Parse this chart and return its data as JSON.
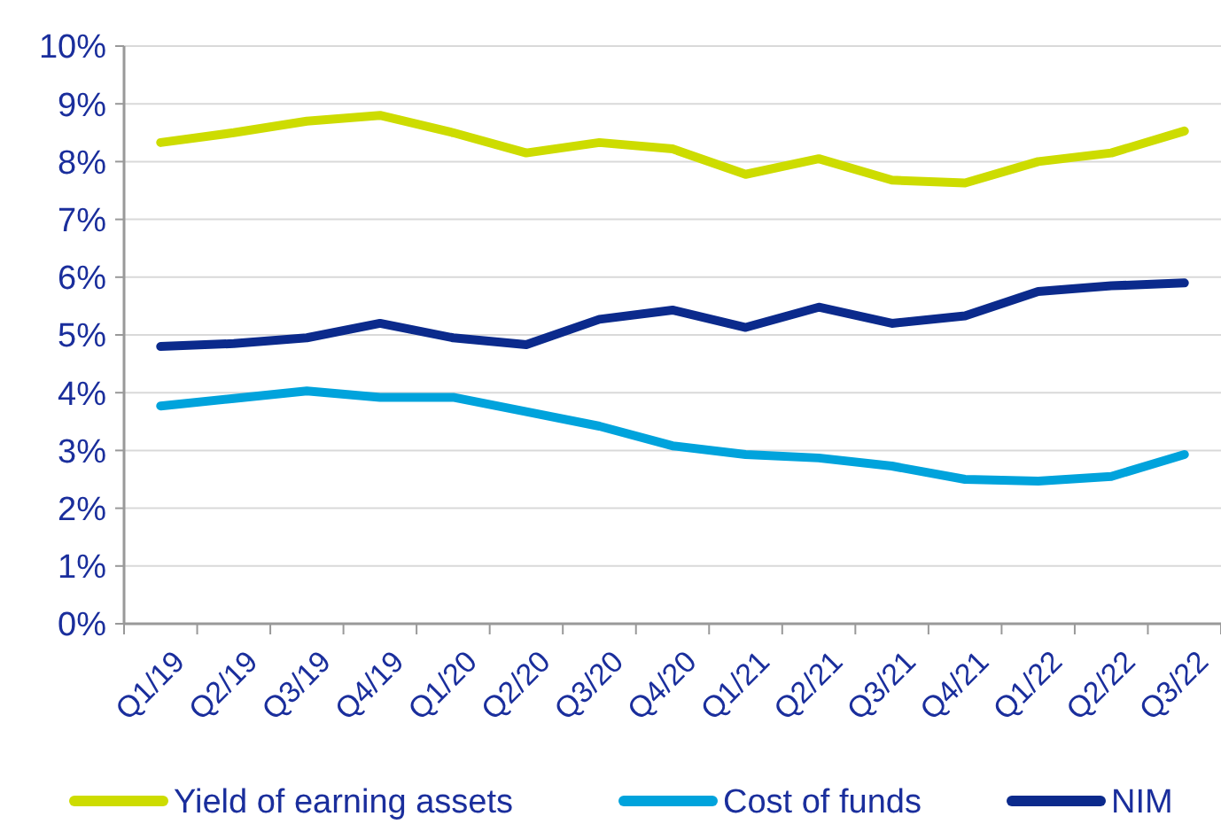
{
  "chart_data": {
    "type": "line",
    "categories": [
      "Q1/19",
      "Q2/19",
      "Q3/19",
      "Q4/19",
      "Q1/20",
      "Q2/20",
      "Q3/20",
      "Q4/20",
      "Q1/21",
      "Q2/21",
      "Q3/21",
      "Q4/21",
      "Q1/22",
      "Q2/22",
      "Q3/22"
    ],
    "series": [
      {
        "name": "Yield of earning assets",
        "color": "#cddc00",
        "values": [
          8.33,
          8.5,
          8.7,
          8.8,
          8.5,
          8.15,
          8.33,
          8.22,
          7.78,
          8.05,
          7.68,
          7.63,
          8.0,
          8.15,
          8.53
        ]
      },
      {
        "name": "Cost of funds",
        "color": "#00a3dc",
        "values": [
          3.77,
          3.9,
          4.03,
          3.92,
          3.92,
          3.67,
          3.42,
          3.08,
          2.93,
          2.87,
          2.73,
          2.5,
          2.47,
          2.55,
          2.93
        ]
      },
      {
        "name": "NIM",
        "color": "#0b2a8c",
        "values": [
          4.8,
          4.85,
          4.95,
          5.2,
          4.95,
          4.83,
          5.27,
          5.43,
          5.13,
          5.48,
          5.2,
          5.33,
          5.75,
          5.85,
          5.9
        ]
      }
    ],
    "ylim": [
      0,
      10
    ],
    "yticks": [
      {
        "value": 0,
        "label": "0%"
      },
      {
        "value": 1,
        "label": "1%"
      },
      {
        "value": 2,
        "label": "2%"
      },
      {
        "value": 3,
        "label": "3%"
      },
      {
        "value": 4,
        "label": "4%"
      },
      {
        "value": 5,
        "label": "5%"
      },
      {
        "value": 6,
        "label": "6%"
      },
      {
        "value": 7,
        "label": "7%"
      },
      {
        "value": 8,
        "label": "8%"
      },
      {
        "value": 9,
        "label": "9%"
      },
      {
        "value": 10,
        "label": "10%"
      }
    ],
    "grid": "y",
    "legend": "bottom",
    "marker": "none",
    "line_style": "solid"
  }
}
